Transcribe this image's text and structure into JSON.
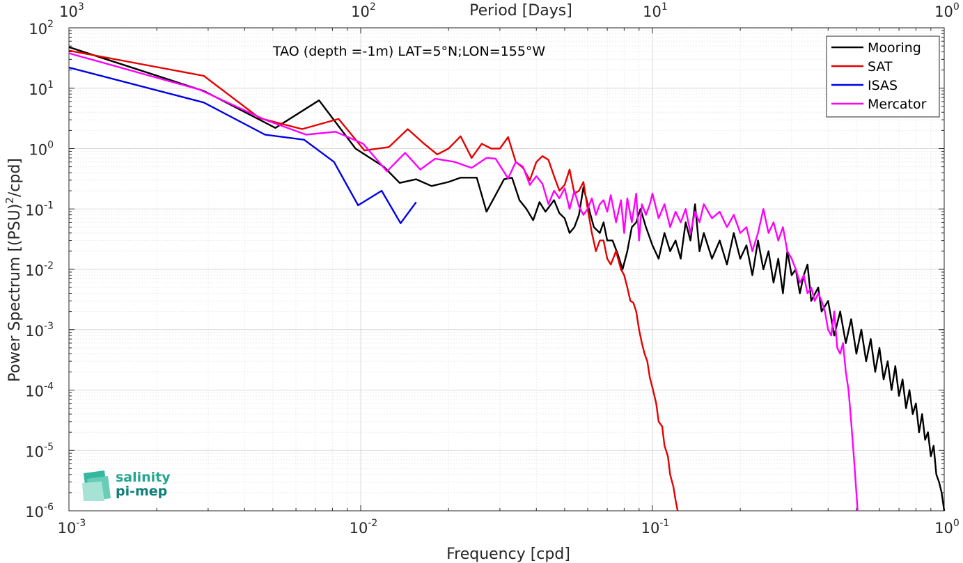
{
  "chart_data": {
    "type": "line",
    "annotation": "TAO (depth =-1m) LAT=5°N;LON=155°W",
    "xlabel": "Frequency [cpd]",
    "ylabel": "Power Spectrum [(PSU)",
    "ylabel_sup": "2",
    "ylabel_tail": "/cpd]",
    "top_xlabel": "Period [Days]",
    "xscale": "log",
    "yscale": "log",
    "xlim": [
      0.001,
      1
    ],
    "ylim": [
      1e-06,
      100
    ],
    "grid": true,
    "legend_position": "top-right",
    "x_ticks": [
      {
        "base": "10",
        "exp": "-3",
        "value": 0.001
      },
      {
        "base": "10",
        "exp": "-2",
        "value": 0.01
      },
      {
        "base": "10",
        "exp": "-1",
        "value": 0.1
      },
      {
        "base": "10",
        "exp": "0",
        "value": 1
      }
    ],
    "top_x_ticks": [
      {
        "base": "10",
        "exp": "3",
        "value": 0.001
      },
      {
        "base": "10",
        "exp": "2",
        "value": 0.01
      },
      {
        "base": "10",
        "exp": "1",
        "value": 0.1
      },
      {
        "base": "10",
        "exp": "0",
        "value": 1
      }
    ],
    "y_ticks": [
      {
        "base": "10",
        "exp": "2",
        "value": 100
      },
      {
        "base": "10",
        "exp": "1",
        "value": 10
      },
      {
        "base": "10",
        "exp": "0",
        "value": 1
      },
      {
        "base": "10",
        "exp": "-1",
        "value": 0.1
      },
      {
        "base": "10",
        "exp": "-2",
        "value": 0.01
      },
      {
        "base": "10",
        "exp": "-3",
        "value": 0.001
      },
      {
        "base": "10",
        "exp": "-4",
        "value": 0.0001
      },
      {
        "base": "10",
        "exp": "-5",
        "value": 1e-05
      },
      {
        "base": "10",
        "exp": "-6",
        "value": 1e-06
      }
    ],
    "series": [
      {
        "name": "Mooring",
        "color": "#000000",
        "points": [
          [
            0.001,
            48
          ],
          [
            0.0029,
            9
          ],
          [
            0.0051,
            2.2
          ],
          [
            0.0072,
            6.3
          ],
          [
            0.0096,
            1.0
          ],
          [
            0.012,
            0.5
          ],
          [
            0.0136,
            0.27
          ],
          [
            0.0155,
            0.31
          ],
          [
            0.0175,
            0.24
          ],
          [
            0.02,
            0.28
          ],
          [
            0.022,
            0.33
          ],
          [
            0.025,
            0.33
          ],
          [
            0.027,
            0.09
          ],
          [
            0.029,
            0.17
          ],
          [
            0.031,
            0.31
          ],
          [
            0.033,
            0.33
          ],
          [
            0.035,
            0.14
          ],
          [
            0.037,
            0.1
          ],
          [
            0.039,
            0.065
          ],
          [
            0.041,
            0.13
          ],
          [
            0.043,
            0.09
          ],
          [
            0.046,
            0.14
          ],
          [
            0.048,
            0.085
          ],
          [
            0.05,
            0.07
          ],
          [
            0.052,
            0.04
          ],
          [
            0.054,
            0.05
          ],
          [
            0.056,
            0.08
          ],
          [
            0.058,
            0.23
          ],
          [
            0.06,
            0.12
          ],
          [
            0.063,
            0.05
          ],
          [
            0.066,
            0.04
          ],
          [
            0.068,
            0.06
          ],
          [
            0.07,
            0.03
          ],
          [
            0.073,
            0.03
          ],
          [
            0.076,
            0.018
          ],
          [
            0.079,
            0.01
          ],
          [
            0.082,
            0.02
          ],
          [
            0.085,
            0.05
          ],
          [
            0.088,
            0.06
          ],
          [
            0.091,
            0.1
          ],
          [
            0.095,
            0.05
          ],
          [
            0.1,
            0.025
          ],
          [
            0.105,
            0.015
          ],
          [
            0.11,
            0.04
          ],
          [
            0.115,
            0.02
          ],
          [
            0.12,
            0.03
          ],
          [
            0.125,
            0.015
          ],
          [
            0.13,
            0.06
          ],
          [
            0.135,
            0.03
          ],
          [
            0.14,
            0.12
          ],
          [
            0.145,
            0.02
          ],
          [
            0.15,
            0.04
          ],
          [
            0.16,
            0.015
          ],
          [
            0.17,
            0.03
          ],
          [
            0.18,
            0.012
          ],
          [
            0.19,
            0.04
          ],
          [
            0.2,
            0.015
          ],
          [
            0.21,
            0.025
          ],
          [
            0.22,
            0.008
          ],
          [
            0.23,
            0.03
          ],
          [
            0.24,
            0.01
          ],
          [
            0.25,
            0.02
          ],
          [
            0.26,
            0.006
          ],
          [
            0.27,
            0.015
          ],
          [
            0.28,
            0.004
          ],
          [
            0.29,
            0.02
          ],
          [
            0.3,
            0.008
          ],
          [
            0.31,
            0.01
          ],
          [
            0.32,
            0.004
          ],
          [
            0.33,
            0.008
          ],
          [
            0.34,
            0.012
          ],
          [
            0.35,
            0.003
          ],
          [
            0.37,
            0.005
          ],
          [
            0.38,
            0.002
          ],
          [
            0.4,
            0.003
          ],
          [
            0.42,
            0.0008
          ],
          [
            0.44,
            0.002
          ],
          [
            0.46,
            0.0006
          ],
          [
            0.48,
            0.0015
          ],
          [
            0.5,
            0.0004
          ],
          [
            0.52,
            0.001
          ],
          [
            0.54,
            0.0003
          ],
          [
            0.56,
            0.0007
          ],
          [
            0.58,
            0.0002
          ],
          [
            0.6,
            0.0005
          ],
          [
            0.62,
            0.00015
          ],
          [
            0.64,
            0.0003
          ],
          [
            0.66,
            0.0001
          ],
          [
            0.68,
            0.00025
          ],
          [
            0.7,
            8e-05
          ],
          [
            0.72,
            0.00015
          ],
          [
            0.74,
            5e-05
          ],
          [
            0.76,
            0.0001
          ],
          [
            0.78,
            4e-05
          ],
          [
            0.8,
            6e-05
          ],
          [
            0.82,
            2e-05
          ],
          [
            0.84,
            4e-05
          ],
          [
            0.86,
            1.5e-05
          ],
          [
            0.88,
            2e-05
          ],
          [
            0.9,
            8e-06
          ],
          [
            0.92,
            1.2e-05
          ],
          [
            0.94,
            4e-06
          ],
          [
            0.96,
            3e-06
          ],
          [
            0.98,
            2e-06
          ],
          [
            1.0,
            1e-06
          ]
        ]
      },
      {
        "name": "SAT",
        "color": "#e60000",
        "points": [
          [
            0.001,
            42
          ],
          [
            0.0029,
            16
          ],
          [
            0.0045,
            3.2
          ],
          [
            0.0063,
            2.1
          ],
          [
            0.0084,
            3.1
          ],
          [
            0.0103,
            0.93
          ],
          [
            0.0125,
            1.06
          ],
          [
            0.0145,
            2.1
          ],
          [
            0.0165,
            1.2
          ],
          [
            0.0183,
            0.8
          ],
          [
            0.02,
            1.0
          ],
          [
            0.022,
            1.6
          ],
          [
            0.024,
            0.7
          ],
          [
            0.026,
            1.2
          ],
          [
            0.028,
            1.0
          ],
          [
            0.03,
            1.0
          ],
          [
            0.032,
            1.55
          ],
          [
            0.034,
            0.6
          ],
          [
            0.036,
            0.48
          ],
          [
            0.038,
            0.3
          ],
          [
            0.04,
            0.6
          ],
          [
            0.042,
            0.75
          ],
          [
            0.044,
            0.65
          ],
          [
            0.046,
            0.35
          ],
          [
            0.048,
            0.2
          ],
          [
            0.05,
            0.25
          ],
          [
            0.052,
            0.45
          ],
          [
            0.054,
            0.18
          ],
          [
            0.056,
            0.2
          ],
          [
            0.058,
            0.28
          ],
          [
            0.06,
            0.1
          ],
          [
            0.062,
            0.04
          ],
          [
            0.064,
            0.02
          ],
          [
            0.066,
            0.03
          ],
          [
            0.068,
            0.03
          ],
          [
            0.07,
            0.015
          ],
          [
            0.072,
            0.012
          ],
          [
            0.075,
            0.02
          ],
          [
            0.078,
            0.01
          ],
          [
            0.08,
            0.008
          ],
          [
            0.082,
            0.005
          ],
          [
            0.084,
            0.003
          ],
          [
            0.086,
            0.0028
          ],
          [
            0.088,
            0.002
          ],
          [
            0.09,
            0.001
          ],
          [
            0.092,
            0.0006
          ],
          [
            0.094,
            0.0004
          ],
          [
            0.096,
            0.0003
          ],
          [
            0.098,
            0.00016
          ],
          [
            0.1,
            0.00011
          ],
          [
            0.103,
            6e-05
          ],
          [
            0.105,
            3e-05
          ],
          [
            0.108,
            2.5e-05
          ],
          [
            0.11,
            1.2e-05
          ],
          [
            0.113,
            8e-06
          ],
          [
            0.115,
            4e-06
          ],
          [
            0.118,
            2.5e-06
          ],
          [
            0.12,
            1.5e-06
          ],
          [
            0.122,
            1e-06
          ]
        ]
      },
      {
        "name": "ISAS",
        "color": "#0000e6",
        "points": [
          [
            0.001,
            22
          ],
          [
            0.0029,
            5.8
          ],
          [
            0.0047,
            1.7
          ],
          [
            0.0064,
            1.4
          ],
          [
            0.0081,
            0.6
          ],
          [
            0.0098,
            0.115
          ],
          [
            0.0118,
            0.2
          ],
          [
            0.0137,
            0.058
          ],
          [
            0.0155,
            0.13
          ]
        ]
      },
      {
        "name": "Mercator",
        "color": "#ff00ff",
        "points": [
          [
            0.001,
            38
          ],
          [
            0.0028,
            9.5
          ],
          [
            0.0047,
            3.0
          ],
          [
            0.0065,
            1.7
          ],
          [
            0.0082,
            1.9
          ],
          [
            0.0102,
            1.2
          ],
          [
            0.0123,
            0.42
          ],
          [
            0.0142,
            0.85
          ],
          [
            0.016,
            0.45
          ],
          [
            0.018,
            0.68
          ],
          [
            0.021,
            0.6
          ],
          [
            0.024,
            0.48
          ],
          [
            0.027,
            0.7
          ],
          [
            0.029,
            0.68
          ],
          [
            0.032,
            0.32
          ],
          [
            0.034,
            0.6
          ],
          [
            0.036,
            0.5
          ],
          [
            0.038,
            0.25
          ],
          [
            0.04,
            0.35
          ],
          [
            0.042,
            0.26
          ],
          [
            0.044,
            0.12
          ],
          [
            0.046,
            0.2
          ],
          [
            0.048,
            0.15
          ],
          [
            0.05,
            0.22
          ],
          [
            0.052,
            0.1
          ],
          [
            0.054,
            0.2
          ],
          [
            0.056,
            0.11
          ],
          [
            0.058,
            0.08
          ],
          [
            0.06,
            0.1
          ],
          [
            0.062,
            0.15
          ],
          [
            0.064,
            0.08
          ],
          [
            0.066,
            0.12
          ],
          [
            0.068,
            0.14
          ],
          [
            0.07,
            0.09
          ],
          [
            0.072,
            0.17
          ],
          [
            0.075,
            0.06
          ],
          [
            0.078,
            0.14
          ],
          [
            0.08,
            0.04
          ],
          [
            0.082,
            0.15
          ],
          [
            0.085,
            0.06
          ],
          [
            0.088,
            0.18
          ],
          [
            0.09,
            0.03
          ],
          [
            0.092,
            0.12
          ],
          [
            0.095,
            0.08
          ],
          [
            0.098,
            0.12
          ],
          [
            0.1,
            0.18
          ],
          [
            0.105,
            0.07
          ],
          [
            0.11,
            0.12
          ],
          [
            0.115,
            0.05
          ],
          [
            0.12,
            0.09
          ],
          [
            0.125,
            0.06
          ],
          [
            0.13,
            0.1
          ],
          [
            0.135,
            0.04
          ],
          [
            0.14,
            0.09
          ],
          [
            0.145,
            0.06
          ],
          [
            0.15,
            0.12
          ],
          [
            0.16,
            0.07
          ],
          [
            0.17,
            0.09
          ],
          [
            0.18,
            0.05
          ],
          [
            0.19,
            0.08
          ],
          [
            0.2,
            0.04
          ],
          [
            0.21,
            0.05
          ],
          [
            0.22,
            0.02
          ],
          [
            0.23,
            0.04
          ],
          [
            0.24,
            0.1
          ],
          [
            0.25,
            0.04
          ],
          [
            0.26,
            0.06
          ],
          [
            0.27,
            0.03
          ],
          [
            0.28,
            0.05
          ],
          [
            0.29,
            0.02
          ],
          [
            0.3,
            0.015
          ],
          [
            0.31,
            0.01
          ],
          [
            0.32,
            0.006
          ],
          [
            0.33,
            0.008
          ],
          [
            0.34,
            0.004
          ],
          [
            0.35,
            0.005
          ],
          [
            0.36,
            0.003
          ],
          [
            0.37,
            0.004
          ],
          [
            0.38,
            0.003
          ],
          [
            0.39,
            0.002
          ],
          [
            0.4,
            0.001
          ],
          [
            0.41,
            0.0008
          ],
          [
            0.42,
            0.002
          ],
          [
            0.43,
            0.0005
          ],
          [
            0.44,
            0.0004
          ],
          [
            0.45,
            0.0006
          ],
          [
            0.46,
            0.0002
          ],
          [
            0.47,
            0.0001
          ],
          [
            0.48,
            3e-05
          ],
          [
            0.49,
            8e-06
          ],
          [
            0.5,
            2e-06
          ],
          [
            0.505,
            1e-06
          ]
        ]
      }
    ],
    "logo": {
      "line1": "salinity",
      "line2": "pi-mep"
    }
  }
}
